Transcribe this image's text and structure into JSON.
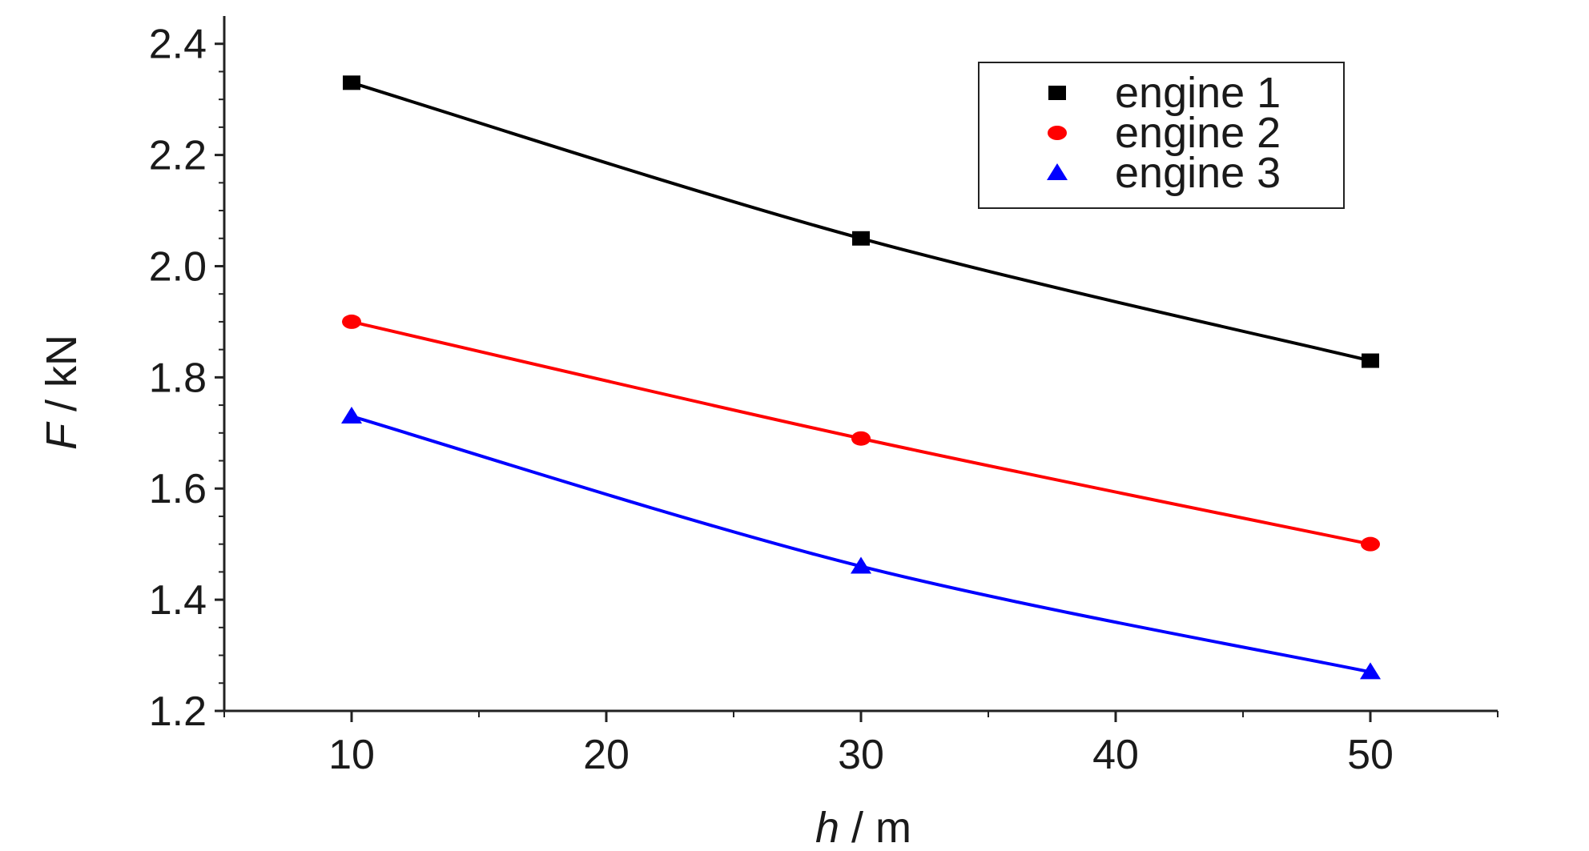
{
  "chart_data": {
    "type": "line",
    "x_label": {
      "var": "h",
      "unit": " / m"
    },
    "y_label": {
      "var": "F",
      "unit": " / kN"
    },
    "x": [
      10,
      30,
      50
    ],
    "xlim": [
      5,
      55
    ],
    "ylim": [
      1.2,
      2.45
    ],
    "x_ticks": [
      10,
      20,
      30,
      40,
      50
    ],
    "x_tick_labels": [
      "10",
      "20",
      "30",
      "40",
      "50"
    ],
    "y_ticks": [
      1.2,
      1.4,
      1.6,
      1.8,
      2.0,
      2.2,
      2.4
    ],
    "y_tick_labels": [
      "1.2",
      "1.4",
      "1.6",
      "1.8",
      "2.0",
      "2.2",
      "2.4"
    ],
    "legend_position": "top-right",
    "grid": false,
    "series": [
      {
        "name": "engine 1",
        "marker": "square",
        "color": "#000000",
        "values": [
          2.33,
          2.05,
          1.83
        ]
      },
      {
        "name": "engine 2",
        "marker": "circle",
        "color": "#ff0000",
        "values": [
          1.9,
          1.69,
          1.5
        ]
      },
      {
        "name": "engine 3",
        "marker": "triangle",
        "color": "#0000ff",
        "values": [
          1.73,
          1.46,
          1.27
        ]
      }
    ]
  }
}
